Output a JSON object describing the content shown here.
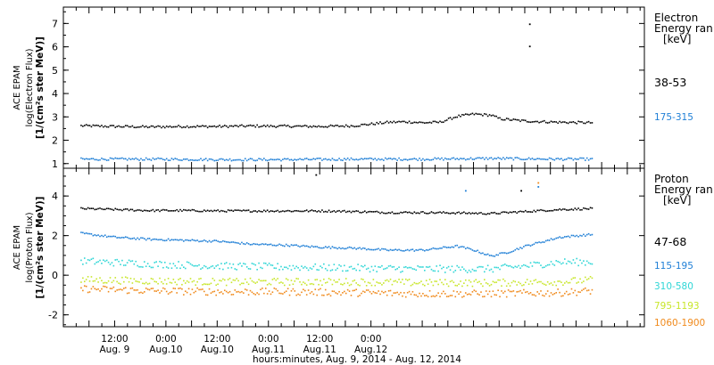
{
  "chart_data": [
    {
      "type": "scatter",
      "panel": "electron",
      "ylabel": [
        "ACE EPAM",
        "log(Electron Flux)",
        "[1/(cm²s ster MeV)]"
      ],
      "yticks": [
        1,
        2,
        3,
        4,
        5,
        6,
        7
      ],
      "ylim": [
        0.8,
        7.7
      ],
      "legend_title": [
        "Electron",
        "Energy ran",
        "[keV]"
      ],
      "series": [
        {
          "name": "38-53",
          "color": "#000000",
          "x": [
            -8,
            0,
            8,
            16,
            24,
            32,
            40,
            48,
            56,
            64,
            68,
            72,
            76,
            80,
            84,
            88,
            90,
            96,
            104,
            112
          ],
          "y": [
            2.65,
            2.62,
            2.6,
            2.62,
            2.62,
            2.64,
            2.63,
            2.62,
            2.65,
            2.8,
            2.82,
            2.78,
            2.8,
            3.05,
            3.15,
            3.1,
            2.95,
            2.85,
            2.8,
            2.78
          ],
          "outliers": [
            [
              97,
              7.0
            ],
            [
              97,
              6.05
            ]
          ]
        },
        {
          "name": "175-315",
          "color": "#1f7fd6",
          "x": [
            -8,
            8,
            24,
            40,
            56,
            72,
            88,
            104,
            112
          ],
          "y": [
            1.22,
            1.22,
            1.2,
            1.2,
            1.22,
            1.22,
            1.25,
            1.22,
            1.22
          ]
        }
      ]
    },
    {
      "type": "scatter",
      "panel": "proton",
      "ylabel": [
        "ACE EPAM",
        "log(Proton Flux)",
        "[1/(cm²s ster MeV)]"
      ],
      "yticks": [
        -2,
        0,
        2,
        4
      ],
      "ylim": [
        -2.6,
        5.4
      ],
      "legend_title": [
        "Proton",
        "Energy ran",
        "[keV]"
      ],
      "xlabel": "hours:minutes, Aug.  9, 2014 - Aug. 12, 2014",
      "xlim": [
        -12,
        124
      ],
      "xticks": [
        {
          "x": 0,
          "label": "12:00",
          "sub": "Aug. 9"
        },
        {
          "x": 12,
          "label": "0:00",
          "sub": "Aug.10"
        },
        {
          "x": 24,
          "label": "12:00",
          "sub": "Aug.10"
        },
        {
          "x": 36,
          "label": "0:00",
          "sub": "Aug.11"
        },
        {
          "x": 48,
          "label": "12:00",
          "sub": "Aug.11"
        },
        {
          "x": 60,
          "label": "0:00",
          "sub": "Aug.12"
        }
      ],
      "series": [
        {
          "name": "47-68",
          "color": "#000000",
          "x": [
            -8,
            0,
            8,
            16,
            24,
            32,
            40,
            48,
            56,
            64,
            72,
            80,
            88,
            96,
            104,
            112
          ],
          "y": [
            3.4,
            3.35,
            3.3,
            3.3,
            3.28,
            3.28,
            3.28,
            3.28,
            3.25,
            3.2,
            3.2,
            3.18,
            3.15,
            3.25,
            3.35,
            3.4
          ],
          "outliers": [
            [
              47,
              5.1
            ],
            [
              95,
              4.3
            ]
          ]
        },
        {
          "name": "115-195",
          "color": "#1f7fd6",
          "x": [
            -8,
            0,
            8,
            16,
            24,
            32,
            40,
            48,
            56,
            64,
            72,
            80,
            84,
            88,
            92,
            96,
            104,
            112
          ],
          "y": [
            2.15,
            1.95,
            1.85,
            1.8,
            1.75,
            1.6,
            1.55,
            1.45,
            1.4,
            1.3,
            1.3,
            1.5,
            1.3,
            1.0,
            1.2,
            1.5,
            1.95,
            2.1
          ],
          "outliers": [
            [
              82,
              4.3
            ],
            [
              99,
              4.5
            ]
          ]
        },
        {
          "name": "310-580",
          "color": "#2fd6d6",
          "x": [
            -8,
            8,
            24,
            40,
            56,
            72,
            88,
            96,
            104,
            112
          ],
          "y": [
            0.75,
            0.6,
            0.5,
            0.45,
            0.4,
            0.35,
            0.35,
            0.5,
            0.7,
            0.7
          ]
        },
        {
          "name": "795-1193",
          "color": "#c8e62a",
          "x": [
            -8,
            8,
            24,
            40,
            56,
            72,
            88,
            104,
            112
          ],
          "y": [
            -0.2,
            -0.25,
            -0.3,
            -0.3,
            -0.3,
            -0.35,
            -0.35,
            -0.3,
            -0.2
          ]
        },
        {
          "name": "1060-1900",
          "color": "#f08a1c",
          "x": [
            -8,
            8,
            24,
            40,
            56,
            72,
            88,
            104,
            112
          ],
          "y": [
            -0.65,
            -0.75,
            -0.8,
            -0.8,
            -0.85,
            -0.9,
            -0.9,
            -0.85,
            -0.75
          ],
          "outliers": [
            [
              99,
              4.7
            ]
          ]
        }
      ]
    }
  ]
}
